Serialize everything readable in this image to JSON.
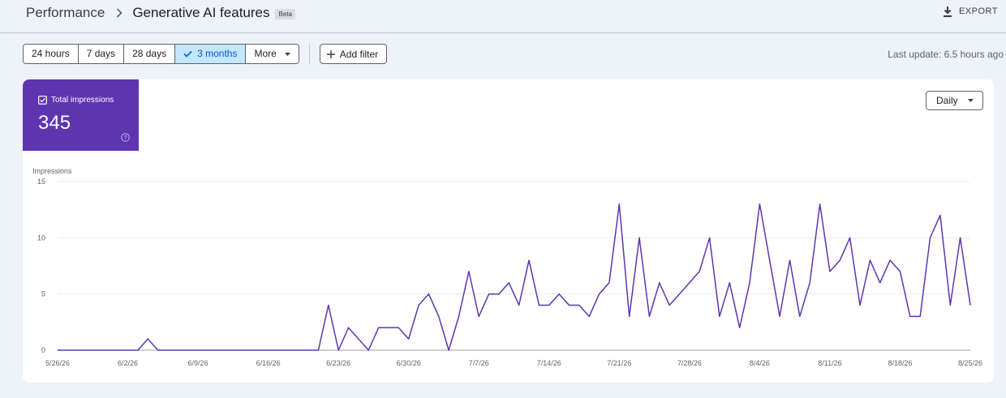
{
  "header": {
    "breadcrumb_root": "Performance",
    "title": "Generative AI features",
    "badge": "Beta",
    "export_label": "EXPORT"
  },
  "filters": {
    "ranges": [
      "24 hours",
      "7 days",
      "28 days",
      "3 months"
    ],
    "selected": "3 months",
    "more_label": "More",
    "add_filter_label": "Add filter",
    "last_update": "Last update: 6.5 hours ago"
  },
  "metric": {
    "label": "Total impressions",
    "value": "345"
  },
  "granularity": "Daily",
  "icons": {
    "export": "download-icon",
    "check": "check-icon",
    "more": "caret-down-icon",
    "add": "plus-icon",
    "metric_checkbox": "checkbox-checked-icon",
    "help": "help-circle-icon"
  },
  "colors": {
    "accent": "#5e35b1",
    "line": "#5e35b1",
    "selected_bg": "#c2e7ff"
  },
  "chart_data": {
    "type": "line",
    "ylabel": "Impressions",
    "ylim": [
      0,
      15
    ],
    "yticks": [
      0,
      5,
      10,
      15
    ],
    "x_start": "2026-05-26",
    "x_end": "2026-08-25",
    "xtick_labels": [
      "5/26/26",
      "6/2/26",
      "6/9/26",
      "6/16/26",
      "6/23/26",
      "6/30/26",
      "7/7/26",
      "7/14/26",
      "7/21/26",
      "7/28/26",
      "8/4/26",
      "8/11/26",
      "8/18/26",
      "8/25/26"
    ],
    "grid": true,
    "series": [
      {
        "values": [
          0,
          0,
          0,
          0,
          0,
          0,
          0,
          0,
          0,
          1,
          0,
          0,
          0,
          0,
          0,
          0,
          0,
          0,
          0,
          0,
          0,
          0,
          0,
          0,
          0,
          0,
          0,
          4,
          0,
          2,
          1,
          0,
          2,
          2,
          2,
          1,
          4,
          5,
          3,
          0,
          3,
          7,
          3,
          5,
          5,
          6,
          4,
          8,
          4,
          4,
          5,
          4,
          4,
          3,
          5,
          6,
          13,
          3,
          10,
          3,
          6,
          4,
          5,
          6,
          7,
          10,
          3,
          6,
          2,
          6,
          13,
          8,
          3,
          8,
          3,
          6,
          13,
          7,
          8,
          10,
          4,
          8,
          6,
          8,
          7,
          3,
          3,
          10,
          12,
          4,
          10,
          4
        ]
      }
    ]
  }
}
